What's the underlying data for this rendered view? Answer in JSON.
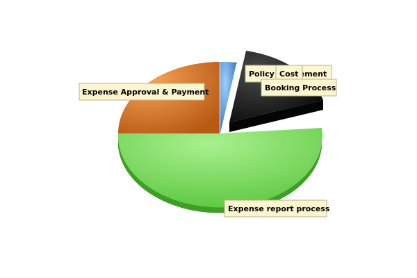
{
  "chart_data": {
    "type": "pie",
    "title": "",
    "slices": [
      {
        "label": "Policy",
        "value": 1.0,
        "color": "#4a90d9",
        "exploded": false
      },
      {
        "label": "Cost Management",
        "value": 0.6,
        "color": "#2a2a2a",
        "exploded": true
      },
      {
        "label": "Booking Process",
        "value": 21.3,
        "color": "#1a1a1a",
        "exploded": true
      },
      {
        "label": "Expense report process",
        "value": 52.1,
        "color": "#6ecf4f",
        "exploded": false
      },
      {
        "label": "Expense Approval & Payment",
        "value": 25.0,
        "color": "#d97a2b",
        "exploded": false
      }
    ],
    "callouts": [
      {
        "text": "Policy"
      },
      {
        "text": "Cost Management"
      },
      {
        "text": "Cost"
      },
      {
        "text": "Booking Process"
      },
      {
        "text": "Expense report process"
      },
      {
        "text": "Expense Approval & Payment"
      }
    ]
  }
}
